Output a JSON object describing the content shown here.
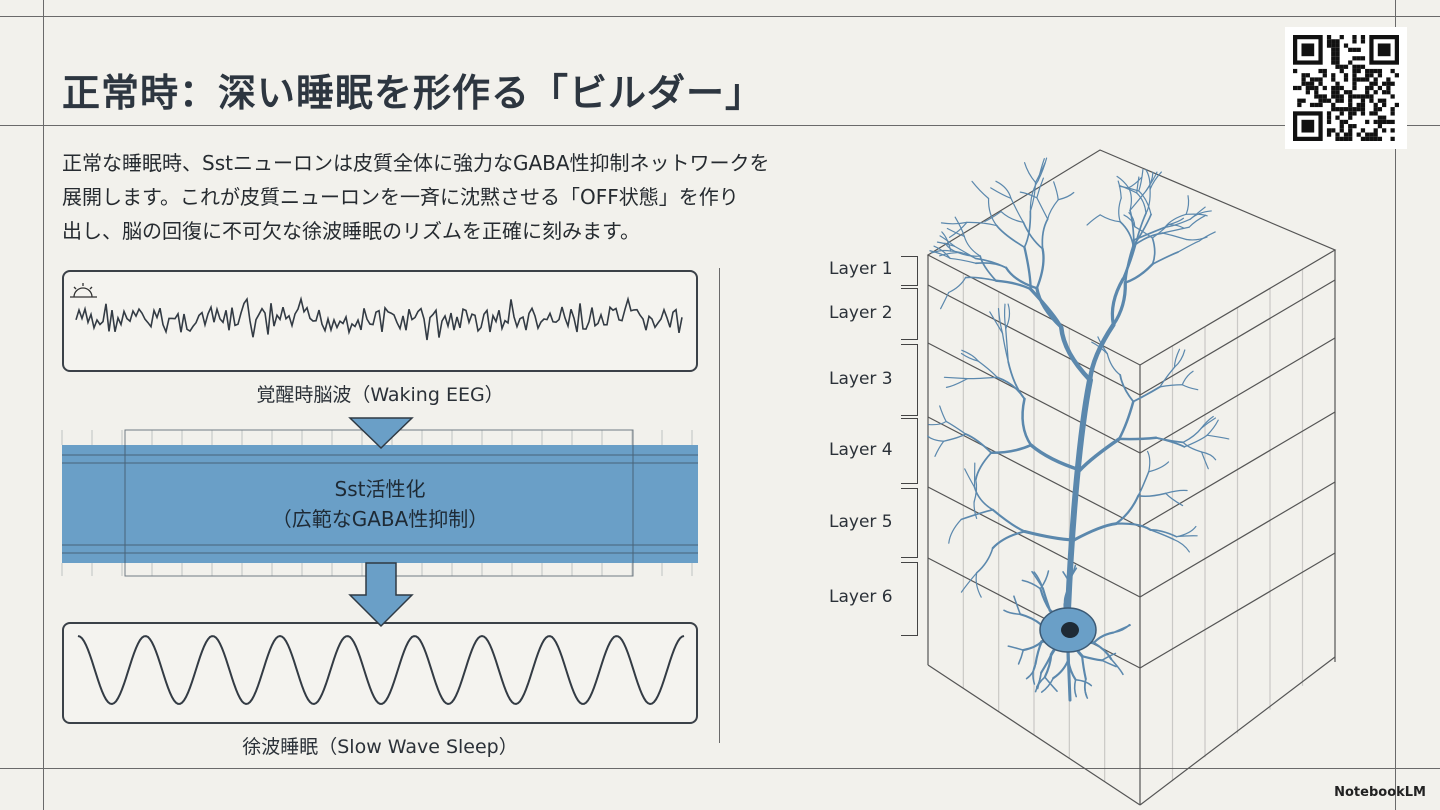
{
  "slide": {
    "title": "正常時：深い睡眠を形作る「ビルダー」",
    "body_lines": [
      "正常な睡眠時、Sstニューロンは皮質全体に強力なGABA性抑制ネットワークを",
      "展開します。これが皮質ニューロンを一斉に沈黙させる「OFF状態」を作り",
      "出し、脳の回復に不可欠な徐波睡眠のリズムを正確に刻みます。"
    ]
  },
  "flow": {
    "waking_caption": "覚醒時脳波（Waking EEG）",
    "waking_icon": "sun-rising-icon",
    "activation_line1": "Sst活性化",
    "activation_line2": "（広範なGABA性抑制）",
    "slow_caption": "徐波睡眠（Slow Wave Sleep）"
  },
  "cortex": {
    "layers": [
      "Layer 1",
      "Layer 2",
      "Layer 3",
      "Layer 4",
      "Layer 5",
      "Layer 6"
    ]
  },
  "colors": {
    "accent": "#6a9fc7",
    "neuron": "#5b88ad",
    "background": "#f2f1ec"
  },
  "branding": {
    "label": "NotebookLM"
  }
}
